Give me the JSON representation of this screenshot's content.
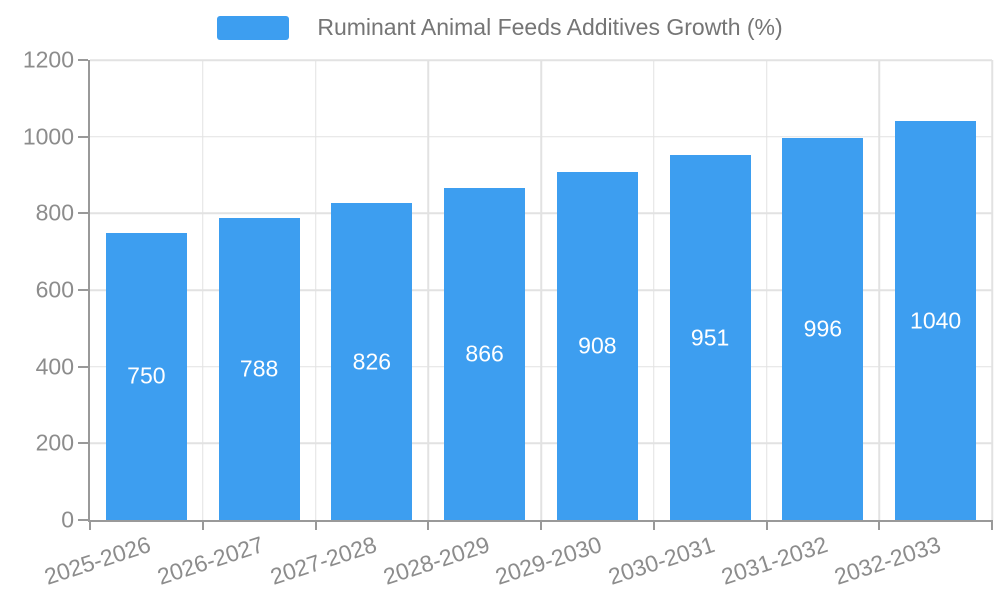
{
  "chart_data": {
    "type": "bar",
    "title": "Ruminant Animal Feeds Additives Growth (%)",
    "categories": [
      "2025-2026",
      "2026-2027",
      "2027-2028",
      "2028-2029",
      "2029-2030",
      "2030-2031",
      "2031-2032",
      "2032-2033"
    ],
    "values": [
      750,
      788,
      826,
      866,
      908,
      951,
      996,
      1040
    ],
    "xlabel": "",
    "ylabel": "",
    "ylim": [
      0,
      1200
    ],
    "yticks": [
      0,
      200,
      400,
      600,
      800,
      1000,
      1200
    ],
    "grid": "on",
    "legend_position": "top-center",
    "x_label_rotation_deg": -18,
    "bar_width_fraction": 0.72,
    "value_label_position": "inside-center",
    "colors": {
      "bar": "#3d9ef0",
      "bar_value_text": "#ffffff",
      "axis_text": "#8c8c8c",
      "legend_text": "#757575",
      "gridline": "#e2e2e2",
      "axis_line": "#999999",
      "background": "#ffffff"
    }
  }
}
